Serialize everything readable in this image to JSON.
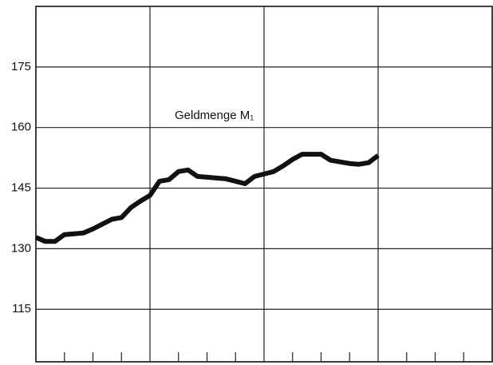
{
  "chart_data": {
    "type": "line",
    "annotation": "Geldmenge M₁",
    "x": [
      0,
      1,
      2,
      3,
      4,
      5,
      6,
      7,
      8,
      9,
      10,
      11,
      12,
      13,
      14,
      15,
      16,
      17,
      18,
      19,
      20,
      21,
      22,
      23,
      24,
      25,
      26,
      27,
      28,
      29,
      30,
      31,
      32,
      33,
      34,
      35,
      36
    ],
    "series": [
      {
        "color": "#111111",
        "values": [
          132.8,
          131.8,
          131.8,
          133.5,
          133.7,
          133.9,
          134.9,
          136.1,
          137.3,
          137.7,
          140.2,
          141.8,
          143.2,
          146.7,
          147.1,
          149.1,
          149.5,
          147.9,
          147.7,
          147.5,
          147.3,
          146.7,
          146.1,
          147.9,
          148.5,
          149.1,
          150.5,
          152.1,
          153.4,
          153.4,
          153.4,
          151.9,
          151.5,
          151.1,
          150.9,
          151.3,
          153.1
        ]
      }
    ],
    "xlim": [
      0,
      48
    ],
    "xticks": [
      0,
      3,
      6,
      9,
      12,
      15,
      18,
      21,
      24,
      27,
      30,
      33,
      36,
      39,
      42,
      45,
      48
    ],
    "ylim": [
      102,
      190
    ],
    "yticks": [
      115,
      130,
      145,
      160,
      175
    ],
    "grid": true
  }
}
